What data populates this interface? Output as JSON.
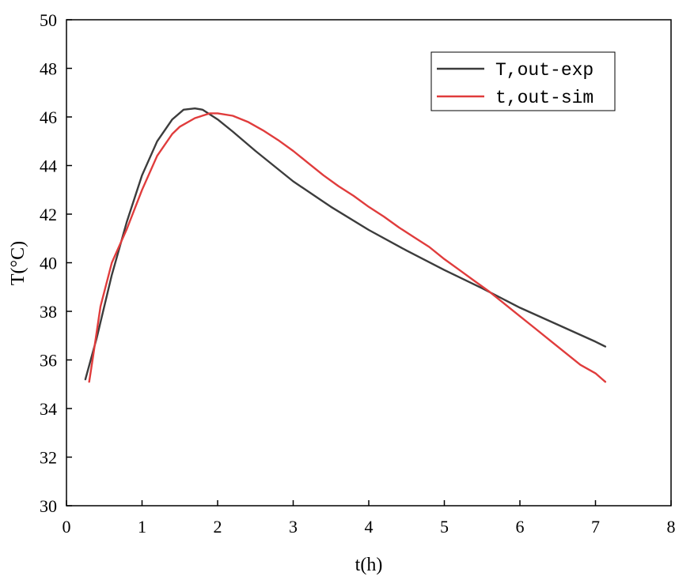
{
  "chart_data": {
    "type": "line",
    "title": "",
    "xlabel": "t(h)",
    "ylabel": "T(°C)",
    "xlim": [
      0,
      8
    ],
    "ylim": [
      30,
      50
    ],
    "x_ticks": [
      0,
      1,
      2,
      3,
      4,
      5,
      6,
      7,
      8
    ],
    "y_ticks": [
      30,
      32,
      34,
      36,
      38,
      40,
      42,
      44,
      46,
      48,
      50
    ],
    "grid": false,
    "legend_position": "top-right",
    "series": [
      {
        "name": "T,out-exp",
        "color": "#3c3c3c",
        "x": [
          0.25,
          0.4,
          0.6,
          0.8,
          1.0,
          1.2,
          1.4,
          1.55,
          1.7,
          1.8,
          2.0,
          2.2,
          2.5,
          3.0,
          3.5,
          4.0,
          4.5,
          5.0,
          5.5,
          6.0,
          6.5,
          7.0,
          7.13
        ],
        "y": [
          35.2,
          36.9,
          39.5,
          41.7,
          43.6,
          45.0,
          45.9,
          46.3,
          46.35,
          46.3,
          45.9,
          45.4,
          44.6,
          43.35,
          42.3,
          41.35,
          40.5,
          39.7,
          38.95,
          38.15,
          37.45,
          36.75,
          36.55
        ]
      },
      {
        "name": "t,out-sim",
        "color": "#e03c3c",
        "x": [
          0.3,
          0.35,
          0.45,
          0.6,
          0.8,
          1.0,
          1.2,
          1.4,
          1.5,
          1.7,
          1.9,
          2.0,
          2.2,
          2.4,
          2.6,
          2.8,
          3.0,
          3.2,
          3.4,
          3.6,
          3.8,
          4.0,
          4.2,
          4.4,
          4.6,
          4.8,
          5.0,
          5.2,
          5.4,
          5.6,
          5.8,
          6.0,
          6.2,
          6.4,
          6.6,
          6.8,
          7.0,
          7.13
        ],
        "y": [
          35.1,
          36.1,
          38.2,
          40.0,
          41.4,
          43.0,
          44.4,
          45.3,
          45.6,
          45.95,
          46.15,
          46.15,
          46.05,
          45.8,
          45.45,
          45.05,
          44.6,
          44.1,
          43.6,
          43.15,
          42.75,
          42.3,
          41.9,
          41.45,
          41.05,
          40.65,
          40.15,
          39.7,
          39.25,
          38.8,
          38.3,
          37.8,
          37.3,
          36.8,
          36.3,
          35.8,
          35.45,
          35.1
        ]
      }
    ]
  }
}
